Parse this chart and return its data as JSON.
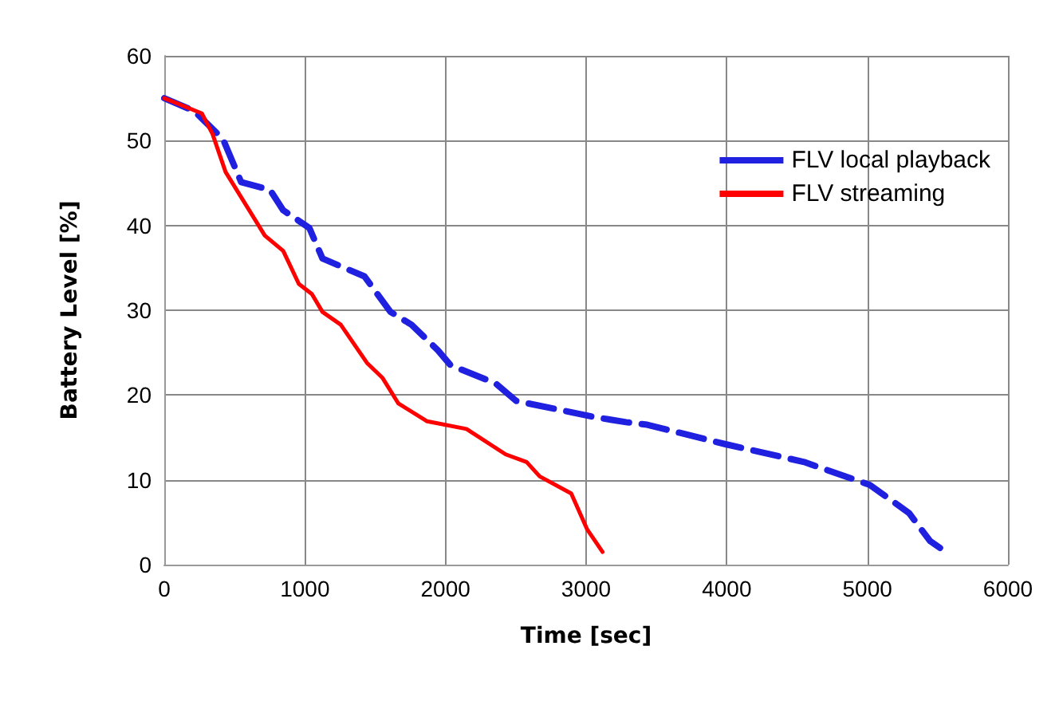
{
  "chart_data": {
    "type": "line",
    "xlabel": "Time [sec]",
    "ylabel": "Battery Level [%]",
    "xlim": [
      0,
      6000
    ],
    "xticks": [
      0,
      1000,
      2000,
      3000,
      4000,
      5000,
      6000
    ],
    "ylim": [
      0,
      60
    ],
    "yticks": [
      0,
      10,
      20,
      30,
      40,
      50,
      60
    ],
    "grid": true,
    "legend": "top right",
    "marker": "none",
    "series": [
      {
        "name": "FLV local playback",
        "color": "#2020e0",
        "line_style": "dashed",
        "x": [
          0,
          212,
          417,
          547,
          752,
          845,
          1032,
          1125,
          1423,
          1609,
          1758,
          1944,
          2037,
          2354,
          2503,
          3061,
          3285,
          3434,
          3992,
          4551,
          5017,
          5296,
          5445,
          5550
        ],
        "values": [
          55,
          53.5,
          50.2,
          45.1,
          44.2,
          41.8,
          39.7,
          36.1,
          34,
          29.8,
          28.3,
          25.3,
          23.5,
          21.4,
          19.3,
          17.4,
          16.8,
          16.5,
          14.2,
          12.1,
          9.4,
          6.1,
          2.8,
          1.6
        ]
      },
      {
        "name": "FLV streaming",
        "color": "#ff0000",
        "line_style": "solid",
        "x": [
          0,
          268,
          343,
          436,
          548,
          715,
          846,
          957,
          1050,
          1125,
          1255,
          1441,
          1553,
          1665,
          1870,
          2149,
          2428,
          2577,
          2670,
          2894,
          3006,
          3117
        ],
        "values": [
          55,
          53.2,
          50.8,
          46.3,
          43.3,
          38.8,
          37,
          33.1,
          31.9,
          29.8,
          28.3,
          23.8,
          22,
          19,
          16.9,
          16,
          13,
          12.1,
          10.4,
          8.4,
          4.2,
          1.5
        ]
      }
    ]
  }
}
